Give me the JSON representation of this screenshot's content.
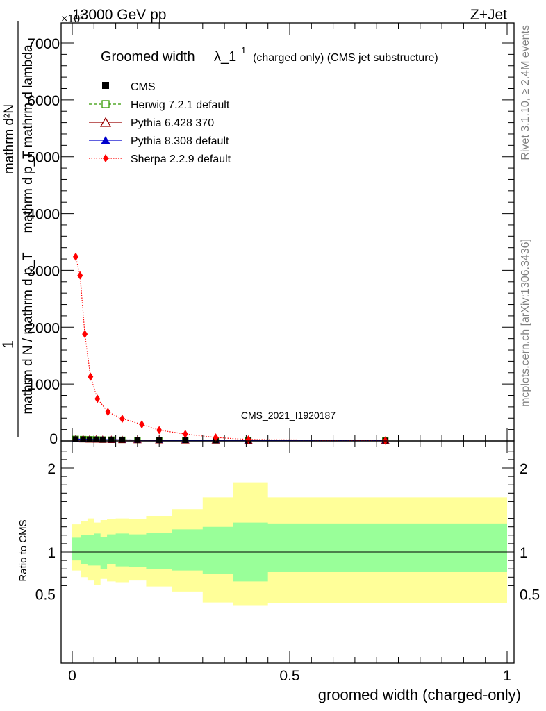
{
  "header": {
    "energy": "13000 GeV pp",
    "process": "Z+Jet",
    "exponent": "×10³"
  },
  "side_text": {
    "rivet": "Rivet 3.1.10, ≥ 2.4M events",
    "mcplots": "mcplots.cern.ch [arXiv:1306.3436]"
  },
  "watermark": "CMS_2021_I1920187",
  "legend": {
    "title_main": "Groomed width",
    "title_lambda": "λ_1",
    "title_sup": "1",
    "title_tail": "(charged only) (CMS jet substructure)"
  },
  "colors": {
    "cms": "#000000",
    "herwig": "#339900",
    "pythia6": "#990000",
    "pythia8": "#0000cc",
    "sherpa": "#ff0000",
    "band_outer": "#ffff99",
    "band_inner": "#99ff99"
  },
  "chart_data": [
    {
      "type": "scatter",
      "panel": "main",
      "ylabel_top": "1",
      "ylabel_num": "mathrm d N / mathrmd p_T mathrm d p_T mathrm d lambda",
      "ylabel_numerator": "mathrm d²N",
      "ylabel_denominator": "mathrm d N / mathrmd p_T mathrm d p_T mathrm d lambda",
      "ylabel_display_numerator": "mathrm d²N",
      "ylabel_display_denominator_a": "mathrm d p_T mathrm d lambda",
      "ylabel_display_denominator_b": "mathrm d N / mathrm d p_T",
      "xlim": [
        -0.02,
        1.0
      ],
      "ylim": [
        0,
        7000
      ],
      "y_multiplier": "10^3",
      "y_ticks": [
        {
          "v": 0,
          "label": "0"
        },
        {
          "v": 1000,
          "label": "1000"
        },
        {
          "v": 2000,
          "label": "2000"
        },
        {
          "v": 3000,
          "label": "3000"
        },
        {
          "v": 4000,
          "label": "4000"
        },
        {
          "v": 5000,
          "label": "5000"
        },
        {
          "v": 6000,
          "label": "6000"
        },
        {
          "v": 7000,
          "label": "7000"
        }
      ],
      "series": [
        {
          "name": "CMS",
          "key": "cms",
          "marker": "square",
          "line": "none",
          "x": [
            0.008,
            0.025,
            0.04,
            0.055,
            0.07,
            0.09,
            0.115,
            0.15,
            0.2,
            0.26,
            0.33,
            0.405,
            0.72
          ],
          "y": [
            30,
            28,
            26,
            24,
            22,
            20,
            18,
            16,
            14,
            12,
            10,
            8,
            6
          ]
        },
        {
          "name": "Herwig 7.2.1 default",
          "key": "herwig",
          "marker": "open-square",
          "line": "dashed",
          "x": [
            0.008,
            0.025,
            0.04,
            0.055,
            0.07,
            0.09,
            0.115,
            0.15,
            0.2,
            0.26,
            0.33,
            0.405,
            0.72
          ],
          "y": [
            34,
            31,
            28,
            26,
            23,
            21,
            19,
            17,
            15,
            13,
            11,
            9,
            7
          ]
        },
        {
          "name": "Pythia 6.428 370",
          "key": "pythia6",
          "marker": "open-triangle",
          "line": "solid",
          "x": [
            0.008,
            0.025,
            0.04,
            0.055,
            0.07,
            0.09,
            0.115,
            0.15,
            0.2,
            0.26,
            0.33,
            0.405,
            0.72
          ],
          "y": [
            32,
            30,
            27,
            25,
            22,
            20,
            18,
            16,
            14,
            12,
            10,
            8,
            6
          ]
        },
        {
          "name": "Pythia 8.308 default",
          "key": "pythia8",
          "marker": "triangle",
          "line": "solid",
          "x": [
            0.008,
            0.025,
            0.04,
            0.055,
            0.07,
            0.09,
            0.115,
            0.15,
            0.2,
            0.26,
            0.33,
            0.405,
            0.72
          ],
          "y": [
            33,
            30,
            28,
            25,
            23,
            21,
            19,
            17,
            15,
            13,
            11,
            9,
            7
          ]
        },
        {
          "name": "Sherpa 2.2.9 default",
          "key": "sherpa",
          "marker": "diamond",
          "line": "dotted",
          "x": [
            0.008,
            0.018,
            0.029,
            0.042,
            0.058,
            0.082,
            0.115,
            0.16,
            0.2,
            0.26,
            0.33,
            0.405,
            0.72
          ],
          "y": [
            3240,
            2910,
            1880,
            1130,
            740,
            510,
            390,
            290,
            190,
            120,
            60,
            25,
            5
          ]
        }
      ]
    },
    {
      "type": "area",
      "panel": "ratio",
      "xlabel": "groomed width (charged-only)",
      "ylabel": "Ratio to CMS",
      "xlim": [
        -0.02,
        1.0
      ],
      "ylim": [
        0.36,
        2.25
      ],
      "x_ticks": [
        {
          "v": 0,
          "label": "0"
        },
        {
          "v": 0.5,
          "label": "0.5"
        },
        {
          "v": 1,
          "label": "1"
        }
      ],
      "y_ticks": [
        {
          "v": 0.5,
          "label": "0.5"
        },
        {
          "v": 1,
          "label": "1"
        },
        {
          "v": 2,
          "label": "2"
        }
      ],
      "bin_edges": [
        0,
        0.02,
        0.035,
        0.05,
        0.065,
        0.08,
        0.1,
        0.13,
        0.17,
        0.23,
        0.3,
        0.37,
        0.45,
        1.0
      ],
      "inner_band": {
        "low": [
          0.9,
          0.86,
          0.84,
          0.84,
          0.8,
          0.86,
          0.83,
          0.82,
          0.8,
          0.78,
          0.74,
          0.65,
          0.76
        ],
        "high": [
          1.17,
          1.2,
          1.2,
          1.22,
          1.18,
          1.21,
          1.22,
          1.21,
          1.23,
          1.27,
          1.3,
          1.35,
          1.34
        ]
      },
      "outer_band": {
        "low": [
          0.78,
          0.7,
          0.66,
          0.61,
          0.68,
          0.65,
          0.64,
          0.66,
          0.59,
          0.53,
          0.4,
          0.36,
          0.39
        ],
        "high": [
          1.33,
          1.37,
          1.4,
          1.35,
          1.38,
          1.39,
          1.4,
          1.39,
          1.43,
          1.51,
          1.65,
          1.83,
          1.65
        ]
      },
      "reference_line": 1.0
    }
  ]
}
